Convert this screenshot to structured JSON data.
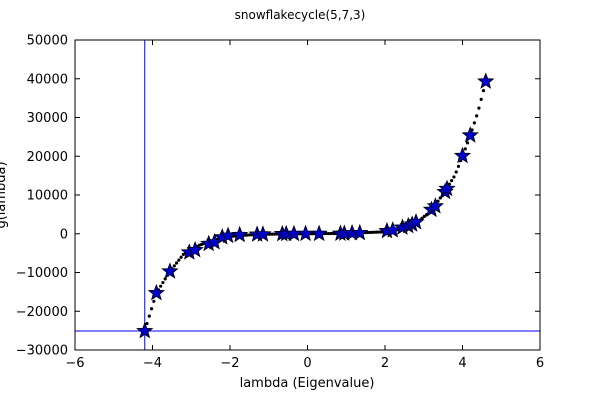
{
  "chart_data": {
    "type": "scatter",
    "title": "snowflakecycle(5,7,3)",
    "xlabel": "lambda (Eigenvalue)",
    "ylabel": "g(lambda)",
    "xlim": [
      -6,
      6
    ],
    "ylim": [
      -30000,
      50000
    ],
    "xticks": [
      -6,
      -4,
      -2,
      0,
      2,
      4,
      6
    ],
    "xtick_labels": [
      "−6",
      "−4",
      "−2",
      "0",
      "2",
      "4",
      "6"
    ],
    "yticks": [
      -30000,
      -20000,
      -10000,
      0,
      10000,
      20000,
      30000,
      40000,
      50000
    ],
    "ytick_labels": [
      "−30000",
      "−20000",
      "−10000",
      "0",
      "10000",
      "20000",
      "30000",
      "40000",
      "50000"
    ],
    "grid": false,
    "reference_lines": {
      "vertical_x": -4.2,
      "horizontal_y": -25100,
      "color": "#0000ff"
    },
    "curve": {
      "style": "dotted",
      "color": "#000000",
      "x_from": -4.2,
      "x_to": 4.6,
      "points": [
        [
          -4.2,
          -25100
        ],
        [
          -3.9,
          -15300
        ],
        [
          -3.55,
          -9700
        ],
        [
          -3.2,
          -5300
        ],
        [
          -2.8,
          -3000
        ],
        [
          -2.4,
          -1600
        ],
        [
          -2.0,
          -700
        ],
        [
          -1.5,
          -300
        ],
        [
          -1.0,
          -100
        ],
        [
          0.0,
          0
        ],
        [
          1.0,
          100
        ],
        [
          1.5,
          300
        ],
        [
          2.0,
          500
        ],
        [
          2.4,
          1200
        ],
        [
          2.8,
          2700
        ],
        [
          3.2,
          6000
        ],
        [
          3.55,
          11000
        ],
        [
          3.8,
          15000
        ],
        [
          4.0,
          20000
        ],
        [
          4.2,
          25300
        ],
        [
          4.4,
          31500
        ],
        [
          4.6,
          39200
        ]
      ]
    },
    "series": [
      {
        "marker": "star",
        "color": "#0000cd",
        "x": [
          -4.2,
          -3.9,
          -3.55,
          -3.05,
          -2.9,
          -2.55,
          -2.4,
          -2.2,
          -2.05,
          -1.75,
          -1.3,
          -1.15,
          -0.65,
          -0.55,
          -0.35,
          -0.05,
          0.3,
          0.85,
          0.95,
          1.15,
          1.35,
          2.05,
          2.2,
          2.45,
          2.6,
          2.7,
          2.8,
          3.2,
          3.3,
          3.55,
          3.6,
          4.0,
          4.2,
          4.6
        ],
        "y": [
          -25100,
          -15300,
          -9700,
          -4800,
          -4200,
          -2600,
          -2200,
          -900,
          -500,
          -300,
          -200,
          -150,
          -60,
          -40,
          -20,
          0,
          10,
          40,
          60,
          150,
          200,
          700,
          900,
          1600,
          2000,
          2400,
          3000,
          6200,
          7100,
          10800,
          11600,
          20100,
          25400,
          39300
        ]
      }
    ]
  }
}
